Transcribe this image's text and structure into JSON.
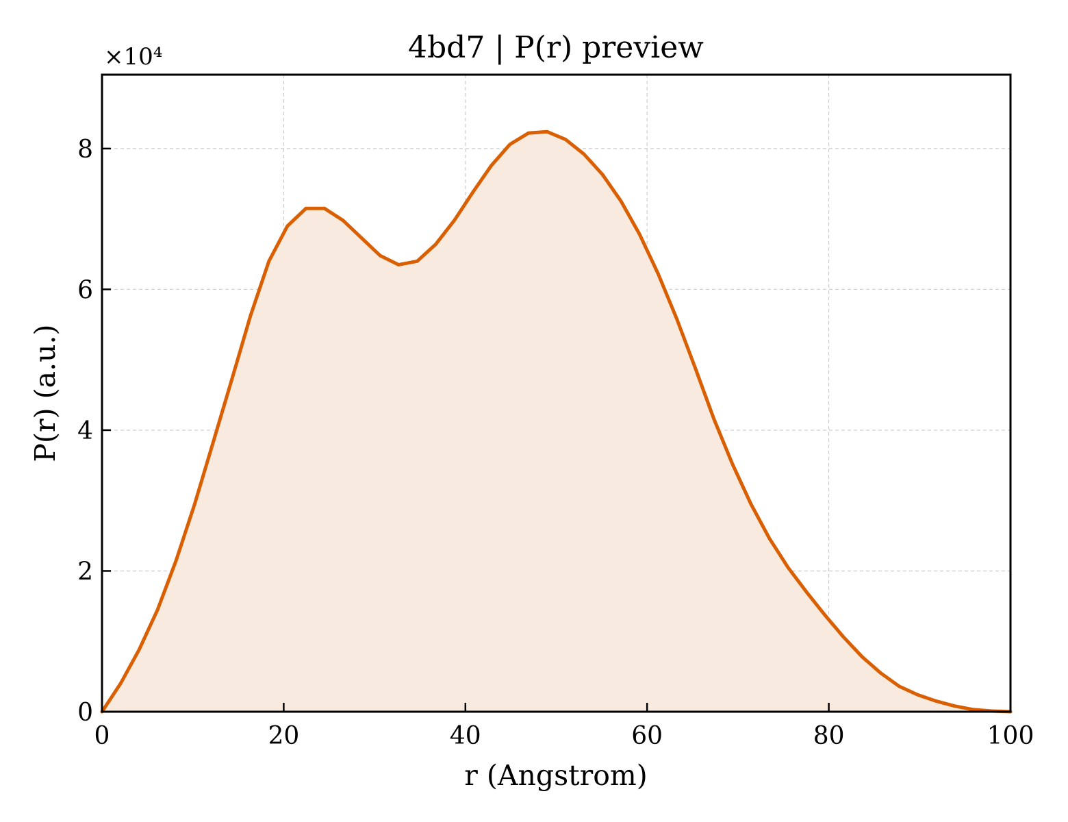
{
  "chart_data": {
    "type": "area",
    "title": "4bd7 | P(r) preview",
    "xlabel": "r (Angstrom)",
    "ylabel": "P(r) (a.u.)",
    "y_multiplier_label": "×10⁴",
    "xlim": [
      0,
      100
    ],
    "ylim": [
      0,
      9.05
    ],
    "xticks": [
      0,
      20,
      40,
      60,
      80,
      100
    ],
    "yticks": [
      0,
      2,
      4,
      6,
      8
    ],
    "grid": true,
    "line_color": "#d95f02",
    "fill_color": "#f9eadf",
    "series": [
      {
        "x": [
          0,
          2.04,
          4.08,
          6.12,
          8.16,
          10.2,
          12.24,
          14.29,
          16.33,
          18.37,
          20.41,
          22.45,
          24.49,
          26.53,
          28.57,
          30.61,
          32.65,
          34.69,
          36.73,
          38.78,
          40.82,
          42.86,
          44.9,
          46.94,
          48.98,
          51.02,
          53.06,
          55.1,
          57.14,
          59.18,
          61.22,
          63.27,
          65.31,
          67.35,
          69.39,
          71.43,
          73.47,
          75.51,
          77.55,
          79.59,
          81.63,
          83.67,
          85.71,
          87.76,
          89.8,
          91.84,
          93.88,
          95.92,
          97.96,
          100
        ],
        "y": [
          0,
          0.4,
          0.88,
          1.45,
          2.15,
          2.95,
          3.83,
          4.72,
          5.62,
          6.4,
          6.9,
          7.15,
          7.15,
          6.98,
          6.73,
          6.48,
          6.35,
          6.4,
          6.64,
          6.98,
          7.38,
          7.76,
          8.06,
          8.22,
          8.24,
          8.13,
          7.92,
          7.63,
          7.25,
          6.78,
          6.22,
          5.58,
          4.88,
          4.16,
          3.52,
          2.95,
          2.46,
          2.05,
          1.7,
          1.37,
          1.06,
          0.78,
          0.55,
          0.36,
          0.24,
          0.15,
          0.08,
          0.03,
          0.01,
          0
        ]
      }
    ]
  }
}
